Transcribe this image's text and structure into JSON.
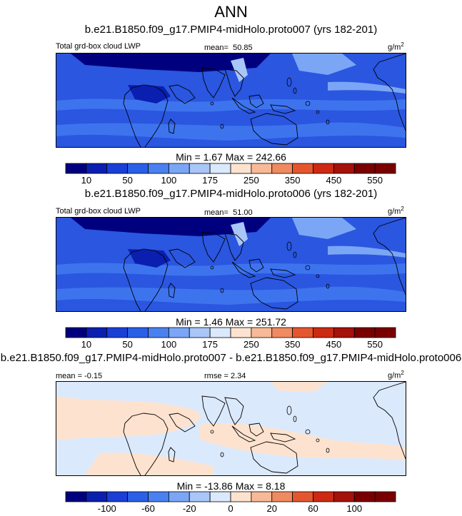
{
  "title": "ANN",
  "colors": {
    "scale_13": [
      "#00007f",
      "#0a1fb0",
      "#1a3fd6",
      "#2a5fe8",
      "#4a80f0",
      "#7aa6f5",
      "#a9c6f8",
      "#dbe9fc",
      "#fde3cf",
      "#f8b998",
      "#f08a60",
      "#e4572e",
      "#cc2a12",
      "#a4120a",
      "#7a0000"
    ],
    "ocean_base": "#2a56e0",
    "ocean_band": "#3d74ee",
    "ocean_deep": "#1a3fd6",
    "pale_blue": "#dbe9fc",
    "pale_orange": "#fde3cf",
    "coast": "#000000"
  },
  "chart_data": [
    {
      "type": "heatmap",
      "title": "b.e21.B1850.f09_g17.PMIP4-midHolo.proto007 (yrs 182-201)",
      "left_label": "Total grd-box cloud LWP",
      "mean_label": "mean=",
      "mean_value": "50.85",
      "units": "g/m",
      "units_sup": "2",
      "stats_text": "Min =   1.67 Max = 242.66",
      "min": 1.67,
      "max": 242.66,
      "colorbar_levels": [
        10,
        25,
        50,
        75,
        100,
        125,
        175,
        200,
        250,
        300,
        350,
        400,
        450,
        500,
        550
      ],
      "colorbar_ticks": [
        "10",
        "50",
        "100",
        "175",
        "250",
        "350",
        "450",
        "550"
      ]
    },
    {
      "type": "heatmap",
      "title": "b.e21.B1850.f09_g17.PMIP4-midHolo.proto006 (yrs 182-201)",
      "left_label": "Total grd-box cloud LWP",
      "mean_label": "mean=",
      "mean_value": "51.00",
      "units": "g/m",
      "units_sup": "2",
      "stats_text": "Min =   1.46 Max = 251.72",
      "min": 1.46,
      "max": 251.72,
      "colorbar_levels": [
        10,
        25,
        50,
        75,
        100,
        125,
        175,
        200,
        250,
        300,
        350,
        400,
        450,
        500,
        550
      ],
      "colorbar_ticks": [
        "10",
        "50",
        "100",
        "175",
        "250",
        "350",
        "450",
        "550"
      ]
    },
    {
      "type": "heatmap",
      "title": "b.e21.B1850.f09_g17.PMIP4-midHolo.proto007 - b.e21.B1850.f09_g17.PMIP4-midHolo.proto006",
      "mean_text": "mean =  -0.15",
      "rmse_text": "rmse =   2.34",
      "units": "g/m",
      "units_sup": "2",
      "stats_text": "Min = -13.86 Max =   8.18",
      "min": -13.86,
      "max": 8.18,
      "colorbar_levels": [
        -120,
        -100,
        -80,
        -60,
        -40,
        -20,
        -10,
        0,
        10,
        20,
        40,
        60,
        80,
        100,
        120
      ],
      "colorbar_ticks": [
        "-100",
        "-60",
        "-20",
        "0",
        "20",
        "60",
        "100"
      ]
    }
  ]
}
